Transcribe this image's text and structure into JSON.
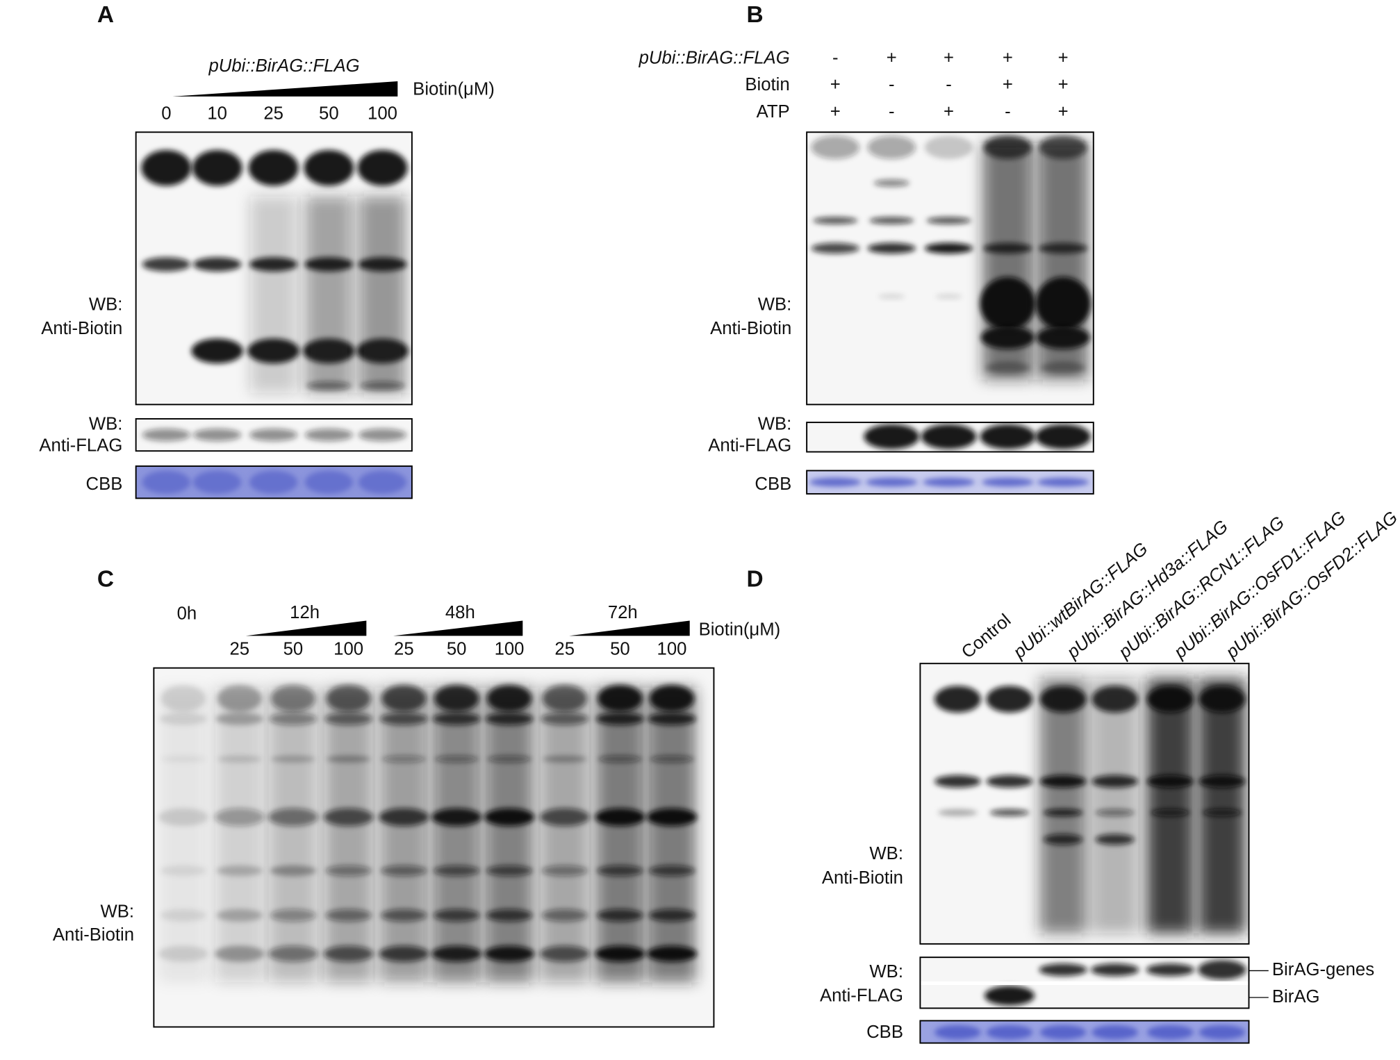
{
  "panel_a": {
    "label": "A",
    "construct": "pUbi::BirAG::FLAG",
    "treatment": "Biotin(μM)",
    "lanes": [
      "0",
      "10",
      "25",
      "50",
      "100"
    ],
    "biotin_blot": [
      "WB:",
      "Anti-Biotin"
    ],
    "flag_blot": [
      "WB:",
      "Anti-FLAG"
    ],
    "cbb": "CBB"
  },
  "panel_b": {
    "label": "B",
    "rows": [
      {
        "name": "pUbi::BirAG::FLAG",
        "signs": [
          "-",
          "+",
          "+",
          "+",
          "+"
        ]
      },
      {
        "name": "Biotin",
        "signs": [
          "+",
          "-",
          "-",
          "+",
          "+"
        ]
      },
      {
        "name": "ATP",
        "signs": [
          "+",
          "-",
          "+",
          "-",
          "+"
        ]
      }
    ],
    "biotin_blot": [
      "WB:",
      "Anti-Biotin"
    ],
    "flag_blot": [
      "WB:",
      "Anti-FLAG"
    ],
    "cbb": "CBB"
  },
  "panel_c": {
    "label": "C",
    "control": "0h",
    "groups": [
      {
        "time": "12h",
        "lanes": [
          "25",
          "50",
          "100"
        ]
      },
      {
        "time": "48h",
        "lanes": [
          "25",
          "50",
          "100"
        ]
      },
      {
        "time": "72h",
        "lanes": [
          "25",
          "50",
          "100"
        ]
      }
    ],
    "treatment": "Biotin(μM)",
    "biotin_blot": [
      "WB:",
      "Anti-Biotin"
    ]
  },
  "panel_d": {
    "label": "D",
    "lanes": [
      "Control",
      "pUbi::wtBirAG::FLAG",
      "pUbi::BirAG::Hd3a::FLAG",
      "pUbi::BirAG::RCN1::FLAG",
      "pUbi::BirAG::OsFD1::FLAG",
      "pUbi::BirAG::OsFD2::FLAG"
    ],
    "biotin_blot": [
      "WB:",
      "Anti-Biotin"
    ],
    "flag_blot": [
      "WB:",
      "Anti-FLAG"
    ],
    "flag_bands": [
      "BirAG-genes",
      "BirAG"
    ],
    "cbb": "CBB"
  }
}
